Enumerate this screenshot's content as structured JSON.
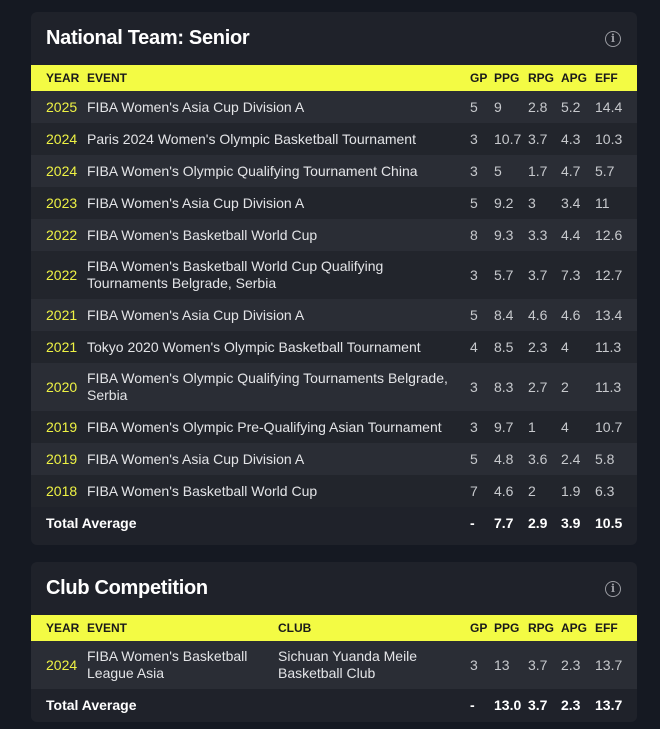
{
  "national": {
    "title": "National Team: Senior",
    "info_icon": "info-circle-icon",
    "headers": {
      "year": "YEAR",
      "event": "EVENT",
      "gp": "GP",
      "ppg": "PPG",
      "rpg": "RPG",
      "apg": "APG",
      "eff": "EFF"
    },
    "rows": [
      {
        "year": "2025",
        "event": "FIBA Women's Asia Cup Division A",
        "gp": "5",
        "ppg": "9",
        "rpg": "2.8",
        "apg": "5.2",
        "eff": "14.4"
      },
      {
        "year": "2024",
        "event": "Paris 2024 Women's Olympic Basketball Tournament",
        "gp": "3",
        "ppg": "10.7",
        "rpg": "3.7",
        "apg": "4.3",
        "eff": "10.3"
      },
      {
        "year": "2024",
        "event": "FIBA Women's Olympic Qualifying Tournament China",
        "gp": "3",
        "ppg": "5",
        "rpg": "1.7",
        "apg": "4.7",
        "eff": "5.7"
      },
      {
        "year": "2023",
        "event": "FIBA Women's Asia Cup Division A",
        "gp": "5",
        "ppg": "9.2",
        "rpg": "3",
        "apg": "3.4",
        "eff": "11"
      },
      {
        "year": "2022",
        "event": "FIBA Women's Basketball World Cup",
        "gp": "8",
        "ppg": "9.3",
        "rpg": "3.3",
        "apg": "4.4",
        "eff": "12.6"
      },
      {
        "year": "2022",
        "event": "FIBA Women's Basketball World Cup Qualifying Tournaments Belgrade, Serbia",
        "gp": "3",
        "ppg": "5.7",
        "rpg": "3.7",
        "apg": "7.3",
        "eff": "12.7"
      },
      {
        "year": "2021",
        "event": "FIBA Women's Asia Cup Division A",
        "gp": "5",
        "ppg": "8.4",
        "rpg": "4.6",
        "apg": "4.6",
        "eff": "13.4"
      },
      {
        "year": "2021",
        "event": "Tokyo 2020 Women's Olympic Basketball Tournament",
        "gp": "4",
        "ppg": "8.5",
        "rpg": "2.3",
        "apg": "4",
        "eff": "11.3"
      },
      {
        "year": "2020",
        "event": "FIBA Women's Olympic Qualifying Tournaments Belgrade, Serbia",
        "gp": "3",
        "ppg": "8.3",
        "rpg": "2.7",
        "apg": "2",
        "eff": "11.3"
      },
      {
        "year": "2019",
        "event": "FIBA Women's Olympic Pre-Qualifying Asian Tournament",
        "gp": "3",
        "ppg": "9.7",
        "rpg": "1",
        "apg": "4",
        "eff": "10.7"
      },
      {
        "year": "2019",
        "event": "FIBA Women's Asia Cup Division A",
        "gp": "5",
        "ppg": "4.8",
        "rpg": "3.6",
        "apg": "2.4",
        "eff": "5.8"
      },
      {
        "year": "2018",
        "event": "FIBA Women's Basketball World Cup",
        "gp": "7",
        "ppg": "4.6",
        "rpg": "2",
        "apg": "1.9",
        "eff": "6.3"
      }
    ],
    "total": {
      "label": "Total Average",
      "gp": "-",
      "ppg": "7.7",
      "rpg": "2.9",
      "apg": "3.9",
      "eff": "10.5"
    }
  },
  "club": {
    "title": "Club Competition",
    "info_icon": "info-circle-icon",
    "headers": {
      "year": "YEAR",
      "event": "EVENT",
      "club": "CLUB",
      "gp": "GP",
      "ppg": "PPG",
      "rpg": "RPG",
      "apg": "APG",
      "eff": "EFF"
    },
    "rows": [
      {
        "year": "2024",
        "event": "FIBA Women's Basketball League Asia",
        "club": "Sichuan Yuanda Meile Basketball Club",
        "gp": "3",
        "ppg": "13",
        "rpg": "3.7",
        "apg": "2.3",
        "eff": "13.7"
      }
    ],
    "total": {
      "label": "Total Average",
      "gp": "-",
      "ppg": "13.0",
      "rpg": "3.7",
      "apg": "2.3",
      "eff": "13.7"
    }
  }
}
